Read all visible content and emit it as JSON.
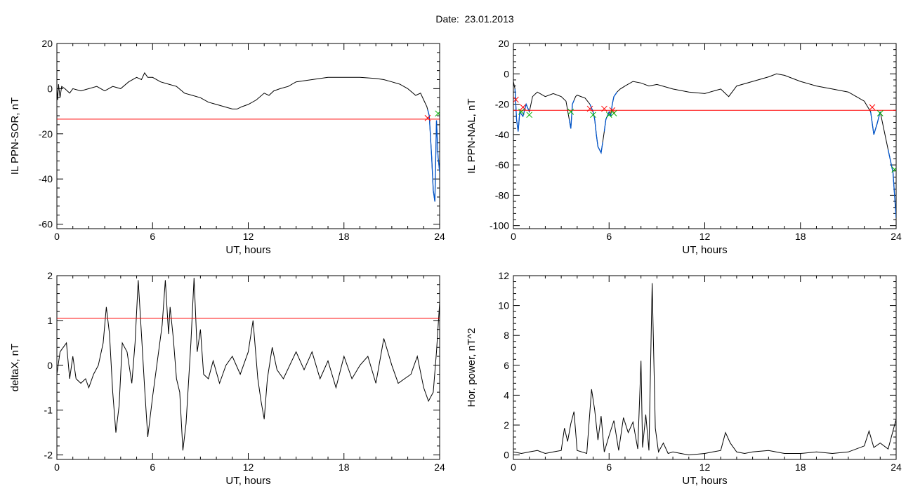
{
  "title": "Date:  23.01.2013",
  "colors": {
    "series": "#000000",
    "threshold": "#ff0000",
    "event": "#0055cc",
    "marker_start": "#ff0000",
    "marker_end": "#00b000"
  },
  "chart_data": [
    {
      "id": "a",
      "type": "line",
      "xlabel": "UT, hours",
      "ylabel": "IL PPN-SOR, nT",
      "xlim": [
        0,
        24
      ],
      "ylim": [
        -62,
        20
      ],
      "xticks": [
        0,
        6,
        12,
        18,
        24
      ],
      "yticks": [
        -60,
        -40,
        -20,
        0,
        20
      ],
      "threshold": -13.5,
      "series": [
        {
          "x": [
            0,
            0.05,
            0.1,
            0.2,
            0.3,
            0.5,
            0.8,
            1,
            1.5,
            2,
            2.5,
            3,
            3.5,
            4,
            4.5,
            5,
            5.3,
            5.5,
            5.7,
            6,
            6.5,
            7,
            7.5,
            8,
            8.5,
            9,
            9.5,
            10,
            10.5,
            11,
            11.3,
            11.6,
            12,
            12.5,
            13,
            13.3,
            13.6,
            14,
            14.5,
            15,
            16,
            17,
            18,
            19,
            20,
            20.5,
            21,
            21.5,
            22,
            22.5,
            22.8,
            23,
            23.2,
            23.35,
            23.5,
            23.6,
            23.7,
            23.8,
            23.9,
            24
          ],
          "y": [
            0,
            -5,
            2,
            -4,
            1,
            0,
            -2,
            0,
            -1,
            0,
            1,
            -1,
            1,
            0,
            3,
            5,
            4,
            7,
            5,
            5,
            3,
            2,
            1,
            -2,
            -3,
            -4,
            -6,
            -7,
            -8,
            -9,
            -9,
            -8,
            -7,
            -5,
            -2,
            -3,
            -1,
            0,
            1,
            3,
            4,
            5,
            5,
            5,
            4.5,
            4,
            3,
            2,
            0,
            -3,
            -2,
            -5,
            -8,
            -12,
            -30,
            -45,
            -50,
            -14,
            -30,
            -37
          ]
        }
      ],
      "event_x": [
        23.25,
        24
      ],
      "markers": [
        {
          "x": 23.25,
          "y": -13,
          "kind": "start"
        },
        {
          "x": 23.9,
          "y": -11,
          "kind": "end"
        }
      ]
    },
    {
      "id": "b",
      "type": "line",
      "xlabel": "UT, hours",
      "ylabel": "IL PPN-NAL, nT",
      "xlim": [
        0,
        24
      ],
      "ylim": [
        -102,
        20
      ],
      "xticks": [
        0,
        6,
        12,
        18,
        24
      ],
      "yticks": [
        -100,
        -80,
        -60,
        -40,
        -20,
        0,
        20
      ],
      "threshold": -24,
      "series": [
        {
          "x": [
            0,
            0.1,
            0.2,
            0.3,
            0.4,
            0.6,
            0.8,
            1,
            1.2,
            1.5,
            2,
            2.5,
            3,
            3.3,
            3.5,
            3.6,
            3.7,
            3.9,
            4,
            4.5,
            4.8,
            5,
            5.1,
            5.2,
            5.3,
            5.5,
            5.6,
            5.7,
            5.8,
            6,
            6.1,
            6.2,
            6.3,
            6.5,
            6.7,
            7,
            7.5,
            8,
            8.5,
            9,
            10,
            11,
            12,
            13,
            13.5,
            14,
            15,
            16,
            16.5,
            17,
            18,
            19,
            20,
            21,
            21.5,
            22,
            22.4,
            22.6,
            22.8,
            23,
            23.2,
            23.5,
            23.8,
            24
          ],
          "y": [
            -5,
            -10,
            -30,
            -38,
            -25,
            -28,
            -20,
            -25,
            -15,
            -12,
            -15,
            -13,
            -15,
            -18,
            -30,
            -36,
            -20,
            -15,
            -14,
            -16,
            -20,
            -25,
            -30,
            -40,
            -48,
            -52,
            -45,
            -38,
            -30,
            -25,
            -28,
            -20,
            -15,
            -12,
            -10,
            -8,
            -5,
            -6,
            -8,
            -7,
            -10,
            -12,
            -13,
            -10,
            -15,
            -8,
            -5,
            -2,
            0,
            -1,
            -5,
            -8,
            -10,
            -12,
            -15,
            -18,
            -25,
            -40,
            -33,
            -25,
            -35,
            -50,
            -65,
            -95
          ]
        }
      ],
      "event_x": [
        0.1,
        1,
        3.5,
        3.8,
        4.8,
        5.6,
        5.7,
        6.5,
        22.4,
        23.0,
        23.5,
        24
      ],
      "markers": [
        {
          "x": 0.15,
          "y": -17,
          "kind": "start"
        },
        {
          "x": 0.6,
          "y": -22,
          "kind": "start"
        },
        {
          "x": 0.5,
          "y": -25,
          "kind": "end"
        },
        {
          "x": 1,
          "y": -27,
          "kind": "end"
        },
        {
          "x": 3.6,
          "y": -25,
          "kind": "end"
        },
        {
          "x": 4.8,
          "y": -23,
          "kind": "start"
        },
        {
          "x": 5.0,
          "y": -27,
          "kind": "end"
        },
        {
          "x": 5.7,
          "y": -23,
          "kind": "start"
        },
        {
          "x": 6.2,
          "y": -24,
          "kind": "start"
        },
        {
          "x": 6.0,
          "y": -27,
          "kind": "end"
        },
        {
          "x": 6.3,
          "y": -26,
          "kind": "end"
        },
        {
          "x": 22.5,
          "y": -22,
          "kind": "start"
        },
        {
          "x": 23.0,
          "y": -26,
          "kind": "end"
        },
        {
          "x": 23.9,
          "y": -63,
          "kind": "end"
        }
      ]
    },
    {
      "id": "c",
      "type": "line",
      "xlabel": "UT, hours",
      "ylabel": "deltaX, nT",
      "xlim": [
        0,
        24
      ],
      "ylim": [
        -2.1,
        2
      ],
      "xticks": [
        0,
        6,
        12,
        18,
        24
      ],
      "yticks": [
        -2,
        -1,
        0,
        1,
        2
      ],
      "threshold": 1.05,
      "series": [
        {
          "x": [
            0,
            0.2,
            0.4,
            0.6,
            0.8,
            1,
            1.2,
            1.5,
            1.8,
            2,
            2.3,
            2.6,
            2.9,
            3.1,
            3.3,
            3.5,
            3.7,
            3.9,
            4.1,
            4.4,
            4.7,
            4.9,
            5.1,
            5.3,
            5.5,
            5.7,
            6,
            6.3,
            6.6,
            6.8,
            7,
            7.1,
            7.3,
            7.5,
            7.7,
            7.9,
            8.1,
            8.4,
            8.6,
            8.8,
            9,
            9.2,
            9.5,
            9.8,
            10.2,
            10.6,
            11,
            11.5,
            12,
            12.3,
            12.6,
            12.8,
            13,
            13.2,
            13.5,
            13.8,
            14.2,
            14.6,
            15,
            15.5,
            16,
            16.5,
            17,
            17.5,
            18,
            18.5,
            19,
            19.5,
            20,
            20.5,
            21,
            21.4,
            21.8,
            22.2,
            22.6,
            23,
            23.3,
            23.6,
            23.8,
            24
          ],
          "y": [
            -0.2,
            0.3,
            0.4,
            0.5,
            -0.3,
            0.2,
            -0.3,
            -0.4,
            -0.3,
            -0.5,
            -0.2,
            0,
            0.5,
            1.3,
            0.7,
            -0.6,
            -1.5,
            -0.9,
            0.5,
            0.3,
            -0.4,
            0.5,
            1.9,
            0.7,
            -0.5,
            -1.6,
            -0.7,
            0.1,
            0.9,
            1.9,
            0.7,
            1.3,
            0.6,
            -0.3,
            -0.6,
            -1.9,
            -1.3,
            0.5,
            1.95,
            0.3,
            0.8,
            -0.2,
            -0.3,
            0.1,
            -0.4,
            0,
            0.2,
            -0.2,
            0.3,
            1.0,
            -0.3,
            -0.8,
            -1.2,
            -0.3,
            0.4,
            -0.1,
            -0.3,
            0,
            0.3,
            -0.1,
            0.3,
            -0.3,
            0.1,
            -0.5,
            0.2,
            -0.3,
            0,
            0.2,
            -0.4,
            0.6,
            0,
            -0.4,
            -0.3,
            -0.2,
            0.2,
            -0.5,
            -0.8,
            -0.6,
            0.3,
            1.4
          ]
        }
      ]
    },
    {
      "id": "d",
      "type": "line",
      "xlabel": "UT, hours",
      "ylabel": "Hor. power, nT^2",
      "xlim": [
        0,
        24
      ],
      "ylim": [
        -0.3,
        12
      ],
      "xticks": [
        0,
        6,
        12,
        18,
        24
      ],
      "yticks": [
        0,
        2,
        4,
        6,
        8,
        10,
        12
      ],
      "series": [
        {
          "x": [
            0,
            0.5,
            1,
            1.5,
            2,
            2.5,
            3,
            3.2,
            3.4,
            3.6,
            3.8,
            4,
            4.3,
            4.6,
            4.9,
            5.1,
            5.3,
            5.5,
            5.7,
            6,
            6.3,
            6.6,
            6.9,
            7.2,
            7.5,
            7.8,
            8,
            8.1,
            8.3,
            8.5,
            8.7,
            8.9,
            9.1,
            9.4,
            9.7,
            10,
            10.5,
            11,
            12,
            12.5,
            13,
            13.3,
            13.6,
            14,
            14.5,
            15,
            16,
            17,
            18,
            19,
            20,
            21,
            22,
            22.3,
            22.6,
            23,
            23.5,
            24
          ],
          "y": [
            0.2,
            0.1,
            0.2,
            0.3,
            0.1,
            0.2,
            0.3,
            1.8,
            0.9,
            2.1,
            2.9,
            0.3,
            0.2,
            0.1,
            4.4,
            3.0,
            1.0,
            2.6,
            0.2,
            1.3,
            2.3,
            0.3,
            2.5,
            1.5,
            2.2,
            0.4,
            6.3,
            0.5,
            2.7,
            0.3,
            11.5,
            1.8,
            0.2,
            0.8,
            0.1,
            0.2,
            0.1,
            0,
            0.1,
            0.2,
            0.3,
            1.5,
            0.8,
            0.2,
            0.1,
            0.2,
            0.3,
            0.1,
            0.1,
            0.2,
            0.1,
            0.2,
            0.6,
            1.6,
            0.5,
            0.8,
            0.4,
            2.4
          ]
        }
      ]
    }
  ]
}
